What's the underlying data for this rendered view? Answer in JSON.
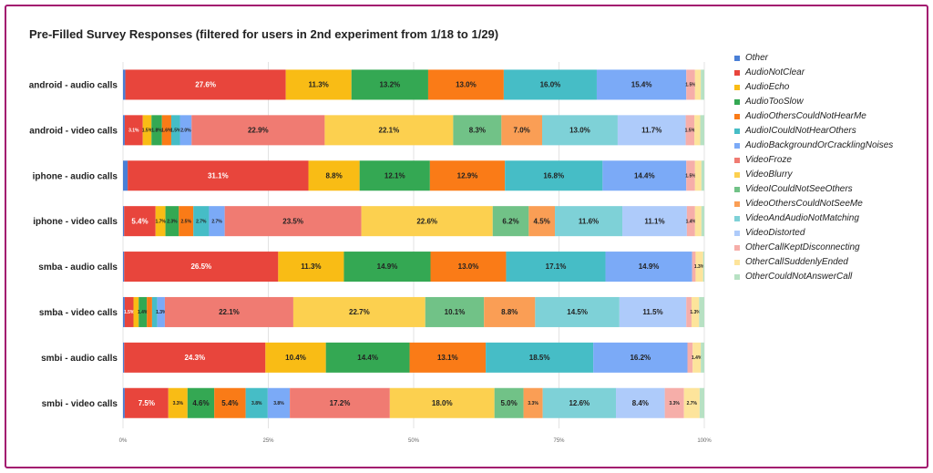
{
  "chart_data": {
    "type": "bar",
    "orientation": "horizontal",
    "stacked": "percent",
    "title": "Pre-Filled Survey Responses (filtered for users in 2nd experiment from 1/18 to 1/29)",
    "categories": [
      "android - audio calls",
      "android - video calls",
      "iphone - audio calls",
      "iphone - video calls",
      "smba - audio calls",
      "smba - video calls",
      "smbi - audio calls",
      "smbi - video calls"
    ],
    "xlim": [
      0,
      100
    ],
    "xticks": [
      "0%",
      "25%",
      "50%",
      "75%",
      "100%"
    ],
    "grid": true,
    "legend": "right",
    "series": [
      {
        "name": "Other",
        "color": "#4a7fd6",
        "values": [
          0.4,
          0.3,
          0.8,
          0.2,
          0.2,
          0.3,
          0.2,
          0.3
        ]
      },
      {
        "name": "AudioNotClear",
        "color": "#e8453c",
        "values": [
          27.6,
          3.1,
          31.1,
          5.4,
          26.5,
          1.5,
          24.3,
          7.5
        ]
      },
      {
        "name": "AudioEcho",
        "color": "#f9bc15",
        "values": [
          11.3,
          1.5,
          8.8,
          1.7,
          11.3,
          0.9,
          10.4,
          3.3
        ]
      },
      {
        "name": "AudioTooSlow",
        "color": "#34a853",
        "values": [
          13.2,
          1.8,
          12.1,
          2.3,
          14.9,
          1.4,
          14.4,
          4.6
        ]
      },
      {
        "name": "AudioOthersCouldNotHearMe",
        "color": "#fa7b17",
        "values": [
          13.0,
          1.6,
          12.9,
          2.5,
          13.0,
          0.9,
          13.1,
          5.4
        ]
      },
      {
        "name": "AudioICouldNotHearOthers",
        "color": "#46bdc6",
        "values": [
          16.0,
          1.5,
          16.8,
          2.7,
          17.1,
          0.9,
          18.5,
          3.8
        ]
      },
      {
        "name": "AudioBackgroundOrCracklingNoises",
        "color": "#7baaf7",
        "values": [
          15.4,
          2.0,
          14.4,
          2.7,
          14.9,
          1.3,
          16.2,
          3.8
        ]
      },
      {
        "name": "VideoFroze",
        "color": "#f07b72",
        "values": [
          0,
          22.9,
          0,
          23.5,
          0,
          22.1,
          0,
          17.2
        ]
      },
      {
        "name": "VideoBlurry",
        "color": "#fcd04f",
        "values": [
          0,
          22.1,
          0,
          22.6,
          0,
          22.7,
          0,
          18.0
        ]
      },
      {
        "name": "VideoICouldNotSeeOthers",
        "color": "#71c287",
        "values": [
          0,
          8.3,
          0,
          6.2,
          0,
          10.1,
          0,
          5.0
        ]
      },
      {
        "name": "VideoOthersCouldNotSeeMe",
        "color": "#fa9e55",
        "values": [
          0,
          7.0,
          0,
          4.5,
          0,
          8.8,
          0,
          3.3
        ]
      },
      {
        "name": "VideoAndAudioNotMatching",
        "color": "#7ed1d7",
        "values": [
          0,
          13.0,
          0,
          11.6,
          0,
          14.5,
          0,
          12.6
        ]
      },
      {
        "name": "VideoDistorted",
        "color": "#aecbfa",
        "values": [
          0,
          11.7,
          0,
          11.1,
          0,
          11.5,
          0,
          8.4
        ]
      },
      {
        "name": "OtherCallKeptDisconnecting",
        "color": "#f6aea9",
        "values": [
          1.5,
          1.5,
          1.5,
          1.4,
          0.6,
          0.9,
          0.9,
          3.3
        ]
      },
      {
        "name": "OtherCallSuddenlyEnded",
        "color": "#fde49b",
        "values": [
          1.0,
          1.0,
          1.1,
          1.1,
          1.3,
          1.3,
          1.4,
          2.7
        ]
      },
      {
        "name": "OtherCouldNotAnswerCall",
        "color": "#b7e1c3",
        "values": [
          0.6,
          0.7,
          0.5,
          0.5,
          0.2,
          0.9,
          0.6,
          0.8
        ]
      }
    ]
  }
}
